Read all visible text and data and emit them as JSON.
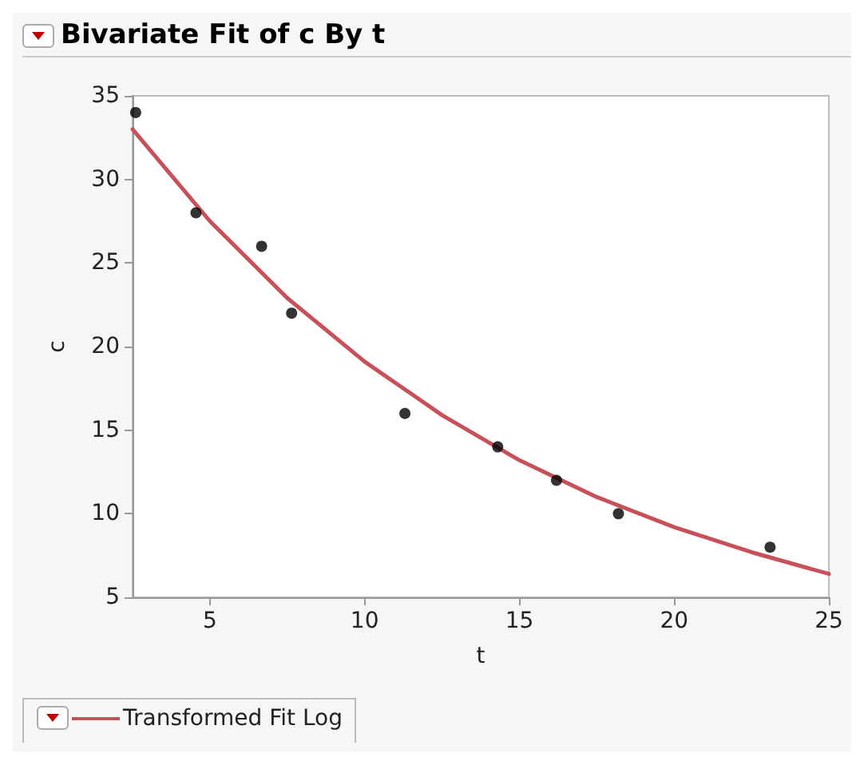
{
  "chart_data": {
    "type": "scatter",
    "title": "Bivariate Fit of c By t",
    "xlabel": "t",
    "ylabel": "c",
    "xlim": [
      2.5,
      25
    ],
    "xticks": [
      5,
      10,
      15,
      20,
      25
    ],
    "ylim": [
      5,
      35
    ],
    "yticks": [
      5,
      10,
      15,
      20,
      25,
      30,
      35
    ],
    "grid": false,
    "legend": "bottom left",
    "marker": "circle",
    "series": [
      {
        "color": "#000000",
        "x": [
          2.6,
          4.55,
          6.67,
          7.64,
          11.3,
          14.3,
          16.2,
          18.2,
          23.1
        ],
        "values": [
          34,
          28,
          26,
          22,
          16,
          14,
          12,
          10,
          8
        ]
      },
      {
        "type": "line",
        "name": "Transformed Fit Log",
        "color": "#c8505a",
        "line_style": "solid",
        "marker": "none",
        "x": [
          2.5,
          5,
          7.5,
          10,
          12.5,
          15,
          17.5,
          20,
          22.5,
          25
        ],
        "values": [
          33,
          27.5,
          22.9,
          19.1,
          15.9,
          13.2,
          11,
          9.2,
          7.7,
          6.4
        ]
      }
    ]
  }
}
